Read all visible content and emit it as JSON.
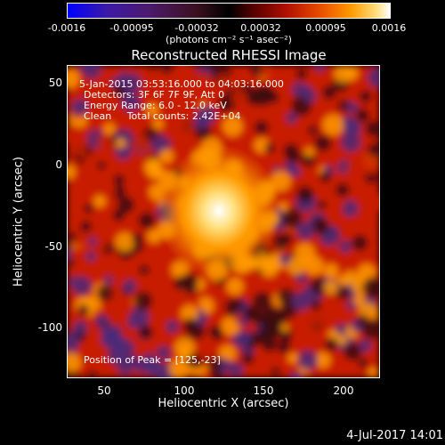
{
  "colorbar": {
    "ticks": [
      "-0.0016",
      "-0.00095",
      "-0.00032",
      "0.00032",
      "0.00095",
      "0.0016"
    ],
    "units": "(photons cm⁻² s⁻¹ asec⁻²)"
  },
  "plot": {
    "title": "Reconstructed RHESSI Image",
    "info_lines": [
      "5-Jan-2015 03:53:16.000 to 04:03:16.000",
      "Detectors: 3F 6F 7F 9F, Att 0",
      "Energy Range: 6.0 - 12.0 keV",
      "Clean     Total counts: 2.42E+04"
    ],
    "peak_text": "Position of Peak = [125,-23]",
    "x_ticks": [
      "50",
      "100",
      "150",
      "200"
    ],
    "y_ticks": [
      "50",
      "0",
      "-50",
      "-100"
    ],
    "x_label": "Heliocentric X (arcsec)",
    "y_label": "Heliocentric Y (arcsec)",
    "colors": {
      "hot": "#ffffff",
      "warm": "#ff9a00",
      "mid": "#c81e00",
      "cool": "#3a0a0a",
      "neg": "#4a2a7a"
    }
  },
  "timestamp": "4-Jul-2017 14:01"
}
